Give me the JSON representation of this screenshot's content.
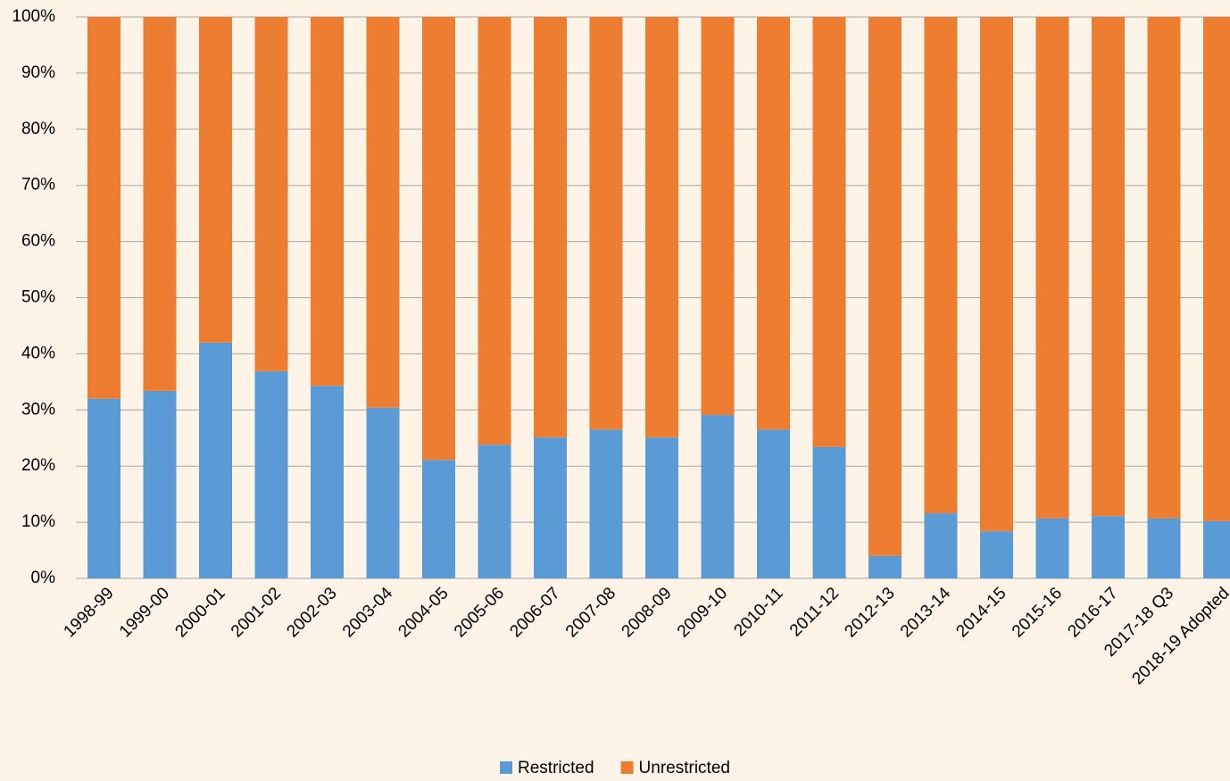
{
  "chart_data": {
    "type": "stacked-bar",
    "categories": [
      "1998-99",
      "1999-00",
      "2000-01",
      "2001-02",
      "2002-03",
      "2003-04",
      "2004-05",
      "2005-06",
      "2006-07",
      "2007-08",
      "2008-09",
      "2009-10",
      "2010-11",
      "2011-12",
      "2012-13",
      "2013-14",
      "2014-15",
      "2015-16",
      "2016-17",
      "2017-18 Q3",
      "2018-19 Adopted"
    ],
    "series": [
      {
        "name": "Restricted",
        "color": "#5b9bd5",
        "values": [
          32.0,
          33.4,
          42.0,
          36.9,
          34.3,
          30.4,
          21.1,
          23.8,
          25.1,
          26.5,
          25.1,
          29.1,
          26.5,
          23.4,
          4.0,
          11.6,
          8.4,
          10.7,
          11.1,
          10.7,
          10.2
        ]
      },
      {
        "name": "Unrestricted",
        "color": "#ed7d31",
        "values": [
          68.0,
          66.6,
          58.0,
          63.1,
          65.7,
          69.6,
          78.9,
          76.2,
          74.9,
          73.5,
          74.9,
          70.9,
          73.5,
          76.6,
          96.0,
          88.4,
          91.6,
          89.3,
          88.9,
          89.3,
          89.8
        ]
      }
    ],
    "ylim": [
      0,
      100
    ],
    "yticks": [
      {
        "value": 0,
        "label": "0%"
      },
      {
        "value": 10,
        "label": "10%"
      },
      {
        "value": 20,
        "label": "20%"
      },
      {
        "value": 30,
        "label": "30%"
      },
      {
        "value": 40,
        "label": "40%"
      },
      {
        "value": 50,
        "label": "50%"
      },
      {
        "value": 60,
        "label": "60%"
      },
      {
        "value": 70,
        "label": "70%"
      },
      {
        "value": 80,
        "label": "80%"
      },
      {
        "value": 90,
        "label": "90%"
      },
      {
        "value": 100,
        "label": "100%"
      }
    ],
    "grid": true,
    "legend": "bottom"
  }
}
